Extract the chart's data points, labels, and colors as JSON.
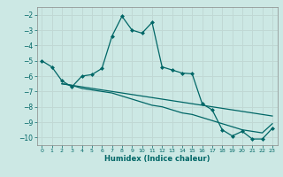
{
  "xlabel": "Humidex (Indice chaleur)",
  "bg_color": "#cce8e4",
  "line_color": "#006666",
  "grid_color": "#c0d8d4",
  "xlim": [
    -0.5,
    23.5
  ],
  "ylim": [
    -10.5,
    -1.5
  ],
  "yticks": [
    -10,
    -9,
    -8,
    -7,
    -6,
    -5,
    -4,
    -3,
    -2
  ],
  "xticks": [
    0,
    1,
    2,
    3,
    4,
    5,
    6,
    7,
    8,
    9,
    10,
    11,
    12,
    13,
    14,
    15,
    16,
    17,
    18,
    19,
    20,
    21,
    22,
    23
  ],
  "series1_x": [
    0,
    1,
    2,
    3,
    4,
    5,
    6,
    7,
    8,
    9,
    10,
    11,
    12,
    13,
    14,
    15,
    16,
    17,
    18,
    19,
    20,
    21,
    22,
    23
  ],
  "series1_y": [
    -5.0,
    -5.4,
    -6.3,
    -6.7,
    -6.0,
    -5.9,
    -5.5,
    -3.4,
    -2.1,
    -3.0,
    -3.2,
    -2.5,
    -5.4,
    -5.6,
    -5.8,
    -5.85,
    -7.8,
    -8.2,
    -9.5,
    -9.9,
    -9.6,
    -10.1,
    -10.1,
    -9.4
  ],
  "series2_x": [
    2,
    3,
    4,
    5,
    6,
    7,
    8,
    9,
    10,
    11,
    12,
    13,
    14,
    15,
    16,
    17,
    18,
    19,
    20,
    21,
    22,
    23
  ],
  "series2_y": [
    -6.5,
    -6.6,
    -6.7,
    -6.8,
    -6.9,
    -7.0,
    -7.1,
    -7.2,
    -7.3,
    -7.4,
    -7.5,
    -7.6,
    -7.7,
    -7.8,
    -7.9,
    -8.0,
    -8.1,
    -8.2,
    -8.3,
    -8.4,
    -8.5,
    -8.6
  ],
  "series3_x": [
    2,
    3,
    4,
    5,
    6,
    7,
    8,
    9,
    10,
    11,
    12,
    13,
    14,
    15,
    16,
    17,
    18,
    19,
    20,
    21,
    22,
    23
  ],
  "series3_y": [
    -6.5,
    -6.6,
    -6.8,
    -6.9,
    -7.0,
    -7.1,
    -7.3,
    -7.5,
    -7.7,
    -7.9,
    -8.0,
    -8.2,
    -8.4,
    -8.5,
    -8.7,
    -8.9,
    -9.1,
    -9.3,
    -9.5,
    -9.6,
    -9.7,
    -9.1
  ]
}
